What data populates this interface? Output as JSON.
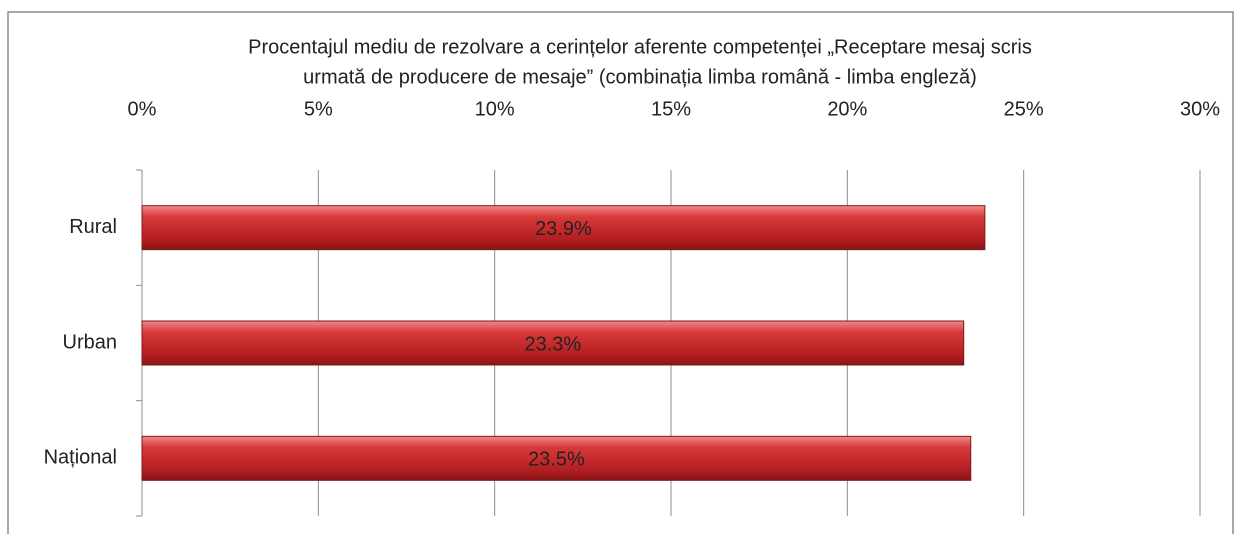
{
  "chart_data": {
    "type": "bar",
    "orientation": "horizontal",
    "title": [
      "Procentajul mediu de rezolvare a cerințelor aferente competenței „Receptare mesaj scris",
      "urmată de producere de mesaje” (combinația limba română - limba engleză)"
    ],
    "categories": [
      "Rural",
      "Urban",
      "Național"
    ],
    "values": [
      23.9,
      23.3,
      23.5
    ],
    "value_labels": [
      "23.9%",
      "23.3%",
      "23.5%"
    ],
    "color": "#c0282a",
    "xlim": [
      0,
      30
    ],
    "xticks": [
      {
        "value": 0,
        "label": "0%"
      },
      {
        "value": 5,
        "label": "5%"
      },
      {
        "value": 10,
        "label": "10%"
      },
      {
        "value": 15,
        "label": "15%"
      },
      {
        "value": 20,
        "label": "20%"
      },
      {
        "value": 25,
        "label": "25%"
      },
      {
        "value": 30,
        "label": "30%"
      }
    ],
    "grid": true
  }
}
